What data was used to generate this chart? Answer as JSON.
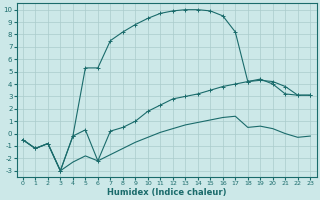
{
  "xlabel": "Humidex (Indice chaleur)",
  "bg_color": "#cce8e8",
  "grid_color": "#aacccc",
  "line_color": "#1a6b6b",
  "xlim": [
    -0.5,
    23.5
  ],
  "ylim": [
    -3.5,
    10.5
  ],
  "xticks": [
    0,
    1,
    2,
    3,
    4,
    5,
    6,
    7,
    8,
    9,
    10,
    11,
    12,
    13,
    14,
    15,
    16,
    17,
    18,
    19,
    20,
    21,
    22,
    23
  ],
  "yticks": [
    -3,
    -2,
    -1,
    0,
    1,
    2,
    3,
    4,
    5,
    6,
    7,
    8,
    9,
    10
  ],
  "line_top_x": [
    0,
    1,
    2,
    3,
    4,
    5,
    6,
    7,
    8,
    9,
    10,
    11,
    12,
    13,
    14,
    15,
    16,
    17,
    18,
    19,
    20,
    21,
    22,
    23
  ],
  "line_top_y": [
    -0.5,
    -1.2,
    -0.8,
    -3.0,
    -0.2,
    5.3,
    5.3,
    7.5,
    8.2,
    8.8,
    9.3,
    9.7,
    9.9,
    10.0,
    10.0,
    9.9,
    9.5,
    8.2,
    4.2,
    4.4,
    4.0,
    3.2,
    3.1,
    3.1
  ],
  "line_mid_x": [
    0,
    1,
    2,
    3,
    4,
    5,
    6,
    7,
    8,
    9,
    10,
    11,
    12,
    13,
    14,
    15,
    16,
    17,
    18,
    19,
    20,
    21,
    22,
    23
  ],
  "line_mid_y": [
    -0.5,
    -1.2,
    -0.8,
    -3.0,
    -0.2,
    0.3,
    -2.2,
    0.2,
    0.5,
    1.0,
    1.8,
    2.3,
    2.8,
    3.0,
    3.2,
    3.5,
    3.8,
    4.0,
    4.2,
    4.3,
    4.2,
    3.8,
    3.1,
    3.1
  ],
  "line_bot_x": [
    0,
    1,
    2,
    3,
    4,
    5,
    6,
    7,
    8,
    9,
    10,
    11,
    12,
    13,
    14,
    15,
    16,
    17,
    18,
    19,
    20,
    21,
    22,
    23
  ],
  "line_bot_y": [
    -0.5,
    -1.2,
    -0.8,
    -3.0,
    -2.3,
    -1.8,
    -2.2,
    -1.7,
    -1.2,
    -0.7,
    -0.3,
    0.1,
    0.4,
    0.7,
    0.9,
    1.1,
    1.3,
    1.4,
    0.5,
    0.6,
    0.4,
    0.0,
    -0.3,
    -0.2
  ]
}
